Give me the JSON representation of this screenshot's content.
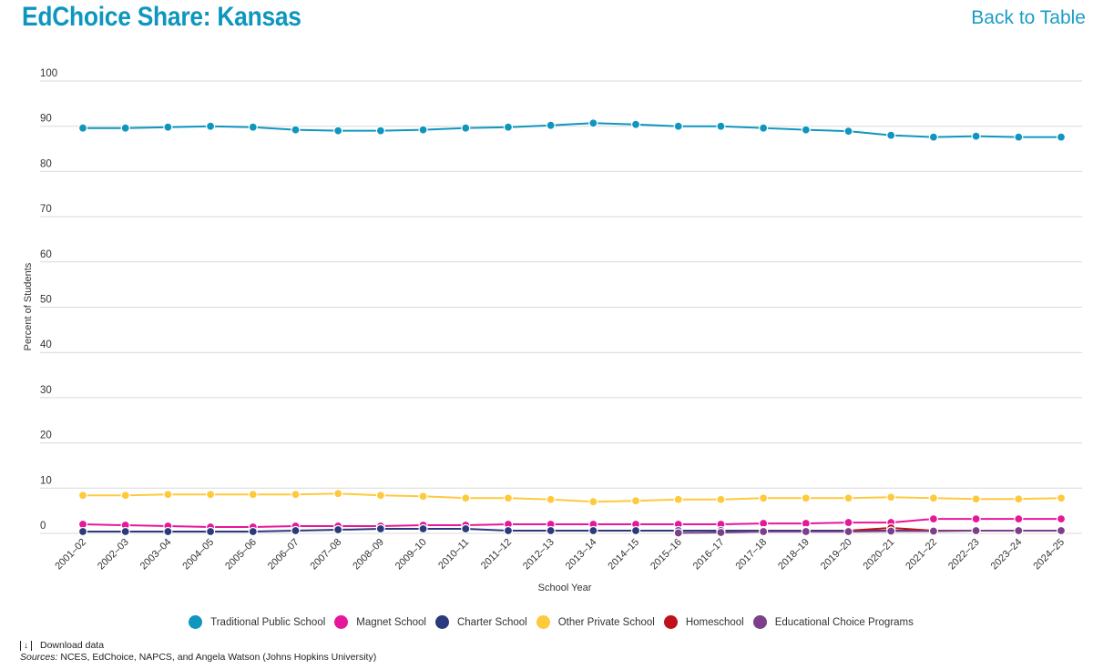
{
  "header": {
    "title": "EdChoice Share: Kansas",
    "back_link": "Back to Table"
  },
  "chart_data": {
    "type": "line",
    "title": "EdChoice Share: Kansas",
    "xlabel": "School Year",
    "ylabel": "Percent of Students",
    "ylim": [
      0,
      100
    ],
    "yticks": [
      0,
      10,
      20,
      30,
      40,
      50,
      60,
      70,
      80,
      90,
      100
    ],
    "grid": true,
    "legend_position": "bottom",
    "categories": [
      "2001–02",
      "2002–03",
      "2003–04",
      "2004–05",
      "2005–06",
      "2006–07",
      "2007–08",
      "2008–09",
      "2009–10",
      "2010–11",
      "2011–12",
      "2012–13",
      "2013–14",
      "2014–15",
      "2015–16",
      "2016–17",
      "2017–18",
      "2018–19",
      "2019–20",
      "2020–21",
      "2021–22",
      "2022–23",
      "2023–24",
      "2024–25"
    ],
    "series": [
      {
        "name": "Traditional Public School",
        "color": "#0f96bf",
        "values": [
          89.6,
          89.6,
          89.8,
          90.0,
          89.8,
          89.2,
          89.0,
          89.0,
          89.2,
          89.6,
          89.8,
          90.2,
          90.7,
          90.4,
          90.0,
          90.0,
          89.6,
          89.2,
          88.9,
          88.0,
          87.6,
          87.8,
          87.6,
          87.6
        ]
      },
      {
        "name": "Magnet School",
        "color": "#e6179b",
        "values": [
          2.0,
          1.8,
          1.6,
          1.4,
          1.4,
          1.6,
          1.6,
          1.6,
          1.8,
          1.8,
          2.0,
          2.0,
          2.0,
          2.0,
          2.0,
          2.0,
          2.2,
          2.2,
          2.4,
          2.4,
          3.2,
          3.2,
          3.2,
          3.2
        ]
      },
      {
        "name": "Charter School",
        "color": "#2b3a7a",
        "values": [
          0.4,
          0.4,
          0.4,
          0.4,
          0.4,
          0.6,
          0.8,
          1.0,
          1.0,
          1.0,
          0.6,
          0.6,
          0.6,
          0.6,
          0.6,
          0.6,
          0.6,
          0.6,
          0.6,
          0.6,
          0.6,
          0.6,
          0.6,
          0.6
        ]
      },
      {
        "name": "Other Private School",
        "color": "#ffc93c",
        "values": [
          8.4,
          8.4,
          8.6,
          8.6,
          8.6,
          8.6,
          8.8,
          8.4,
          8.2,
          7.8,
          7.8,
          7.5,
          7.0,
          7.2,
          7.5,
          7.5,
          7.8,
          7.8,
          7.8,
          8.0,
          7.8,
          7.6,
          7.6,
          7.8
        ]
      },
      {
        "name": "Homeschool",
        "color": "#c0101c",
        "values": [
          null,
          null,
          null,
          null,
          null,
          null,
          null,
          null,
          null,
          null,
          null,
          null,
          null,
          null,
          null,
          null,
          null,
          null,
          0.6,
          1.2,
          0.6,
          0.6,
          0.6,
          0.6
        ]
      },
      {
        "name": "Educational Choice Programs",
        "color": "#7c3f8a",
        "values": [
          null,
          null,
          null,
          null,
          null,
          null,
          null,
          null,
          null,
          null,
          null,
          null,
          null,
          null,
          0.1,
          0.2,
          0.4,
          0.4,
          0.4,
          0.5,
          0.5,
          0.6,
          0.6,
          0.6
        ]
      }
    ]
  },
  "footer": {
    "download_label": "Download data",
    "sources_label": "Sources:",
    "sources_text": " NCES, EdChoice, NAPCS, and Angela Watson (Johns Hopkins University)"
  }
}
